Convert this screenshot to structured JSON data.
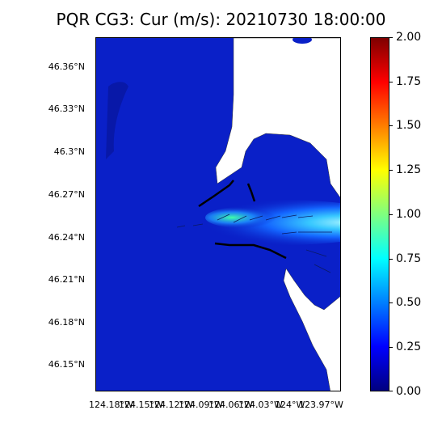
{
  "title": "PQR CG3: Cur (m/s): 20210730 18:00:00",
  "map": {
    "lat_ticks": [
      "46.36°N",
      "46.33°N",
      "46.3°N",
      "46.27°N",
      "46.24°N",
      "46.21°N",
      "46.18°N",
      "46.15°N"
    ],
    "lon_ticks": [
      "124.18°W",
      "124.15°W",
      "124.12°W",
      "124.09°W",
      "124.06°W",
      "124.03°W",
      "124°W",
      "123.97°W"
    ]
  },
  "colorbar": {
    "ticks": [
      "2.00",
      "1.75",
      "1.50",
      "1.25",
      "1.00",
      "0.75",
      "0.50",
      "0.25",
      "0.00"
    ],
    "min": 0.0,
    "max": 2.0,
    "colormap": [
      "#00007f",
      "#0000ff",
      "#007fff",
      "#00ffff",
      "#7fff7f",
      "#ffff00",
      "#ff7f00",
      "#ff0000",
      "#7f0000"
    ]
  },
  "colors": {
    "water_base": "#0a1fc4",
    "land": "#ffffff",
    "jetty": "#000000"
  }
}
